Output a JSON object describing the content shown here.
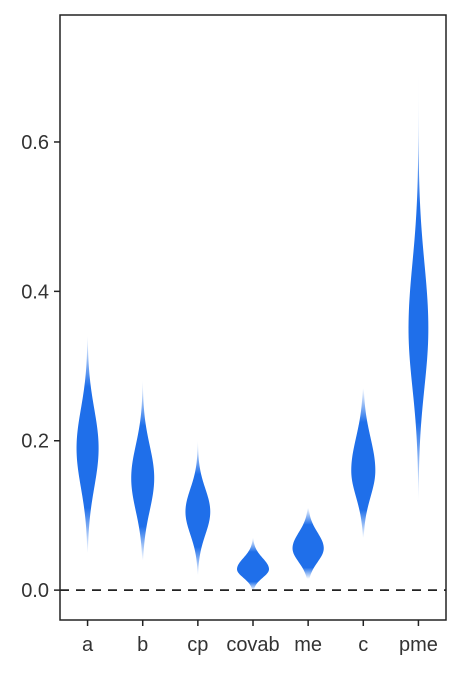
{
  "chart_data": {
    "type": "violin",
    "title": "",
    "xlabel": "",
    "ylabel": "",
    "categories": [
      "a",
      "b",
      "cp",
      "covab",
      "me",
      "c",
      "pme"
    ],
    "ylim": [
      -0.04,
      0.77
    ],
    "yticks": [
      0.0,
      0.2,
      0.4,
      0.6
    ],
    "ytick_labels": [
      "0.0",
      "0.2",
      "0.4",
      "0.6"
    ],
    "reference_line": {
      "y": 0.0,
      "style": "dashed",
      "color": "#222222"
    },
    "fill_color": "#1f6fea",
    "grid": false,
    "legend": "none",
    "distributions": [
      {
        "category": "a",
        "median": 0.19,
        "min": 0.05,
        "max": 0.34,
        "q_low": 0.13,
        "q_high": 0.25
      },
      {
        "category": "b",
        "median": 0.15,
        "min": 0.04,
        "max": 0.28,
        "q_low": 0.1,
        "q_high": 0.2
      },
      {
        "category": "cp",
        "median": 0.105,
        "min": 0.02,
        "max": 0.2,
        "q_low": 0.07,
        "q_high": 0.14
      },
      {
        "category": "covab",
        "median": 0.028,
        "min": 0.0,
        "max": 0.07,
        "q_low": 0.015,
        "q_high": 0.045
      },
      {
        "category": "me",
        "median": 0.056,
        "min": 0.015,
        "max": 0.11,
        "q_low": 0.035,
        "q_high": 0.08
      },
      {
        "category": "c",
        "median": 0.16,
        "min": 0.07,
        "max": 0.27,
        "q_low": 0.12,
        "q_high": 0.21
      },
      {
        "category": "pme",
        "median": 0.35,
        "min": 0.12,
        "max": 0.7,
        "q_low": 0.26,
        "q_high": 0.45
      }
    ]
  }
}
